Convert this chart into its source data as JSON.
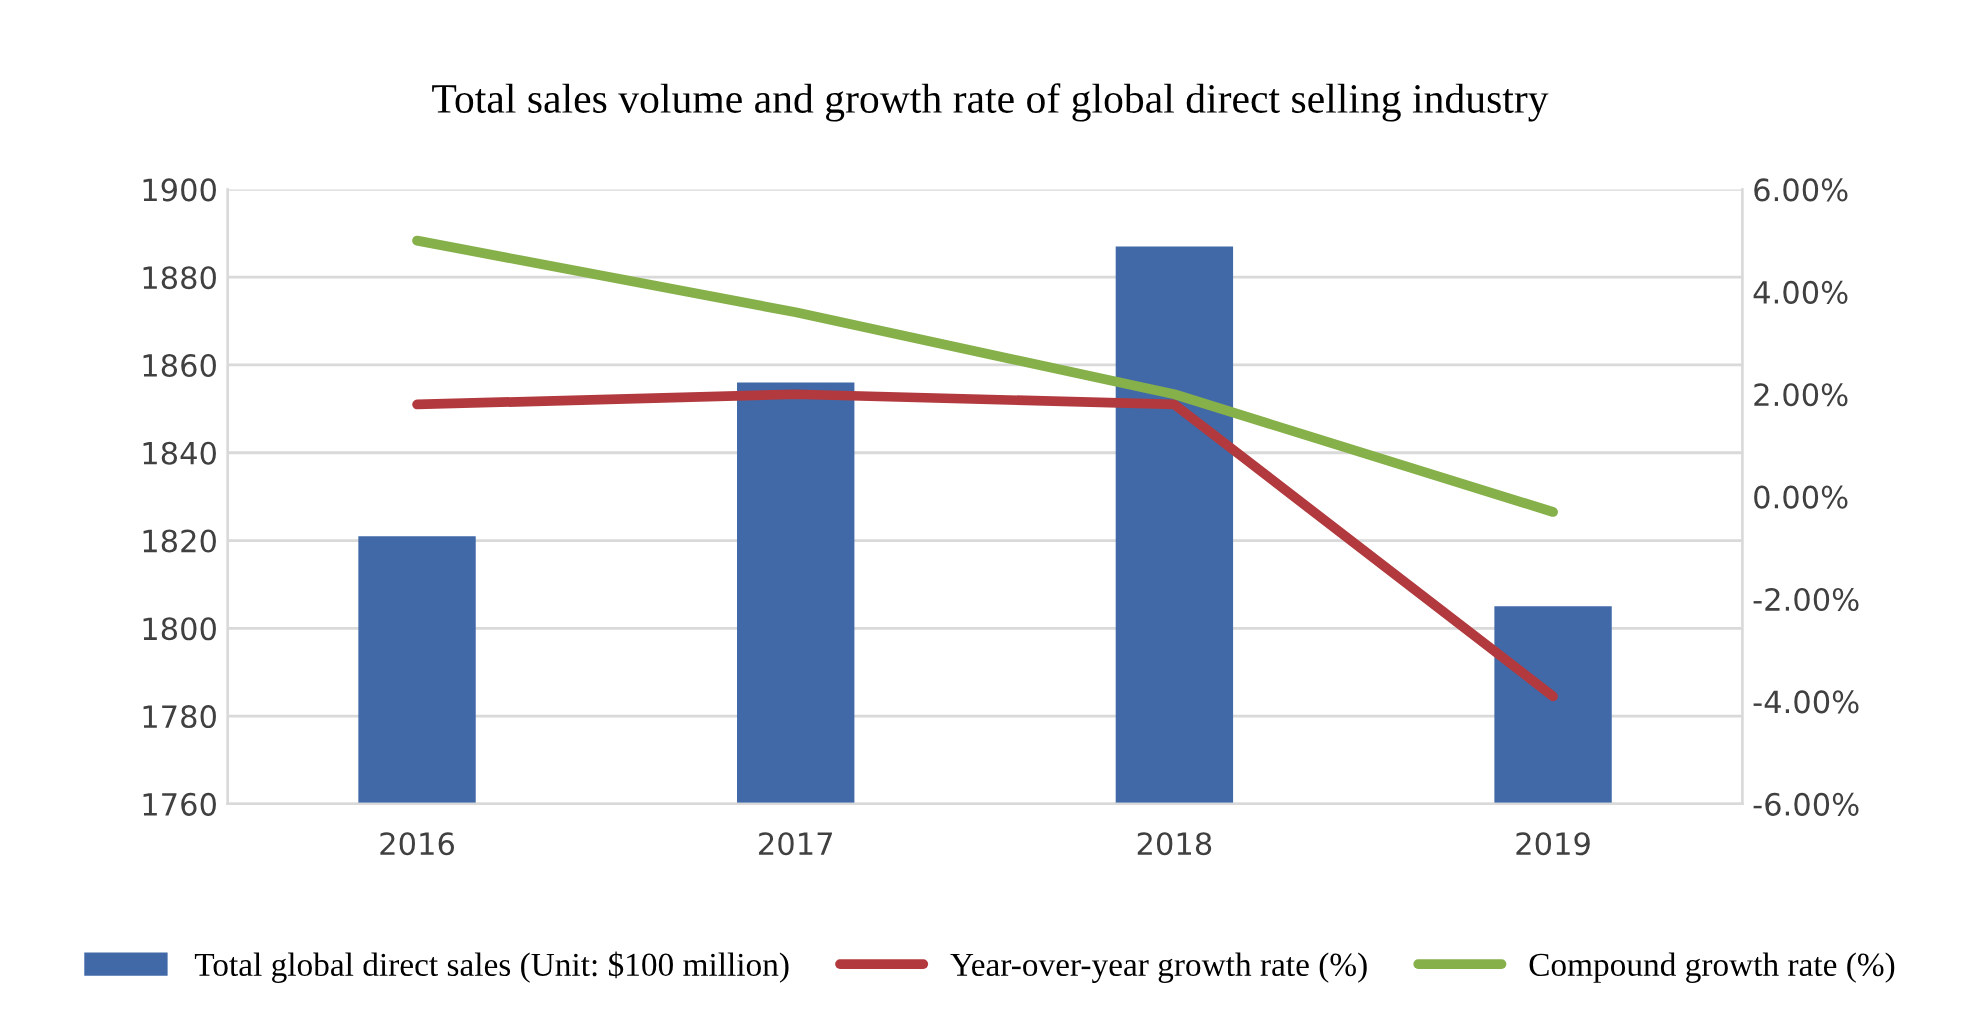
{
  "chart_data": {
    "type": "bar",
    "title": "Total sales volume and growth rate of global direct selling industry",
    "categories": [
      "2016",
      "2017",
      "2018",
      "2019"
    ],
    "series": [
      {
        "name": "Total global direct sales (Unit: $100 million)",
        "color": "#4169a8",
        "values": [
          1821,
          1856,
          1887,
          1805
        ]
      },
      {
        "name": "Year-over-year growth rate (%)",
        "color": "#b23a3e",
        "type": "line",
        "axis": "y2",
        "values": [
          1.8,
          2.0,
          1.8,
          -3.9
        ]
      },
      {
        "name": "Compound growth rate (%)",
        "color": "#86b04a",
        "type": "line",
        "axis": "y2",
        "values": [
          5.0,
          3.6,
          2.0,
          -0.3
        ]
      }
    ],
    "ylim": [
      1760,
      1900
    ],
    "yticks": [
      1760,
      1780,
      1800,
      1820,
      1840,
      1860,
      1880,
      1900
    ],
    "y2lim": [
      -6,
      6
    ],
    "y2ticks": [
      {
        "value": -6,
        "label": "-6.00%"
      },
      {
        "value": -4,
        "label": "-4.00%"
      },
      {
        "value": -2,
        "label": "-2.00%"
      },
      {
        "value": 0,
        "label": "0.00%"
      },
      {
        "value": 2,
        "label": "2.00%"
      },
      {
        "value": 4,
        "label": "4.00%"
      },
      {
        "value": 6,
        "label": "6.00%"
      }
    ],
    "grid": "y",
    "legend": "bottom",
    "line_style": "solid",
    "marker": "none"
  }
}
